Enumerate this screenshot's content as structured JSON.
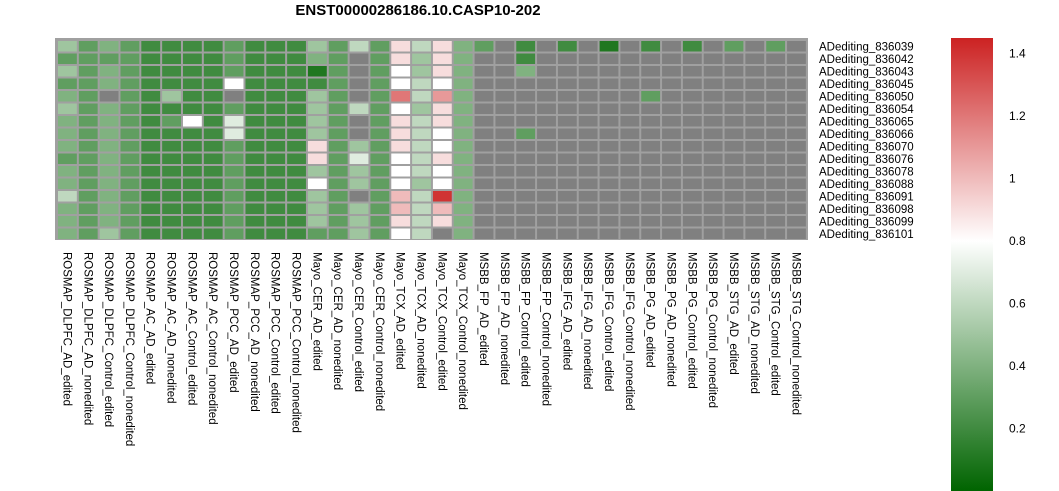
{
  "chart_data": {
    "type": "heatmap",
    "title": "ENST00000286186.10.CASP10-202",
    "rows": [
      "ADediting_836039",
      "ADediting_836042",
      "ADediting_836043",
      "ADediting_836045",
      "ADediting_836050",
      "ADediting_836054",
      "ADediting_836065",
      "ADediting_836066",
      "ADediting_836070",
      "ADediting_836076",
      "ADediting_836078",
      "ADediting_836088",
      "ADediting_836091",
      "ADediting_836098",
      "ADediting_836099",
      "ADediting_836101"
    ],
    "columns": [
      "ROSMAP_DLPFC_AD_edited",
      "ROSMAP_DLPFC_AD_nonedited",
      "ROSMAP_DLPFC_Control_edited",
      "ROSMAP_DLPFC_Control_nonedited",
      "ROSMAP_AC_AD_edited",
      "ROSMAP_AC_AD_nonedited",
      "ROSMAP_AC_Control_edited",
      "ROSMAP_AC_Control_nonedited",
      "ROSMAP_PCC_AD_edited",
      "ROSMAP_PCC_AD_nonedited",
      "ROSMAP_PCC_Control_edited",
      "ROSMAP_PCC_Control_nonedited",
      "Mayo_CER_AD_edited",
      "Mayo_CER_AD_nonedited",
      "Mayo_CER_Control_edited",
      "Mayo_CER_Control_nonedited",
      "Mayo_TCX_AD_edited",
      "Mayo_TCX_AD_nonedited",
      "Mayo_TCX_Control_edited",
      "Mayo_TCX_Control_nonedited",
      "MSBB_FP_AD_edited",
      "MSBB_FP_AD_nonedited",
      "MSBB_FP_Control_edited",
      "MSBB_FP_Control_nonedited",
      "MSBB_IFG_AD_edited",
      "MSBB_IFG_AD_nonedited",
      "MSBB_IFG_Control_edited",
      "MSBB_IFG_Control_nonedited",
      "MSBB_PG_AD_edited",
      "MSBB_PG_AD_nonedited",
      "MSBB_PG_Control_edited",
      "MSBB_PG_Control_nonedited",
      "MSBB_STG_AD_edited",
      "MSBB_STG_AD_nonedited",
      "MSBB_STG_Control_edited",
      "MSBB_STG_Control_nonedited"
    ],
    "values": [
      [
        0.5,
        0.3,
        0.4,
        0.3,
        0.2,
        0.2,
        0.2,
        0.2,
        0.3,
        0.2,
        0.2,
        0.2,
        0.5,
        0.3,
        0.6,
        0.3,
        0.9,
        0.6,
        0.9,
        0.4,
        0.3,
        null,
        0.2,
        null,
        0.2,
        null,
        0.1,
        null,
        0.2,
        null,
        0.2,
        null,
        0.3,
        null,
        0.3,
        null
      ],
      [
        0.3,
        0.3,
        0.3,
        0.3,
        0.2,
        0.2,
        0.2,
        0.2,
        0.3,
        0.2,
        0.2,
        0.2,
        0.4,
        0.3,
        null,
        0.3,
        0.9,
        0.5,
        0.9,
        0.4,
        null,
        null,
        0.2,
        null,
        null,
        null,
        null,
        null,
        null,
        null,
        null,
        null,
        null,
        null,
        null,
        null
      ],
      [
        0.5,
        0.3,
        0.4,
        0.3,
        0.2,
        0.2,
        0.2,
        0.2,
        0.3,
        0.2,
        0.2,
        0.2,
        0.1,
        0.3,
        null,
        0.3,
        0.8,
        0.5,
        0.9,
        0.4,
        null,
        null,
        0.4,
        null,
        null,
        null,
        null,
        null,
        null,
        null,
        null,
        null,
        null,
        null,
        null,
        null
      ],
      [
        0.3,
        0.3,
        0.4,
        0.3,
        0.2,
        0.2,
        0.2,
        0.2,
        0.8,
        0.2,
        0.2,
        0.2,
        0.2,
        0.3,
        null,
        0.3,
        0.8,
        0.6,
        0.8,
        0.4,
        null,
        null,
        null,
        null,
        null,
        null,
        null,
        null,
        null,
        null,
        null,
        null,
        null,
        null,
        null,
        null
      ],
      [
        0.4,
        0.3,
        null,
        0.3,
        0.2,
        0.5,
        0.2,
        0.2,
        null,
        0.2,
        0.2,
        0.2,
        0.5,
        0.3,
        null,
        0.3,
        1.2,
        0.6,
        1.1,
        0.4,
        null,
        null,
        null,
        null,
        null,
        null,
        null,
        null,
        0.3,
        null,
        null,
        null,
        null,
        null,
        null,
        null
      ],
      [
        0.5,
        0.3,
        0.4,
        0.3,
        0.2,
        0.2,
        0.2,
        0.2,
        0.3,
        0.2,
        0.2,
        0.2,
        0.5,
        0.3,
        0.6,
        0.3,
        0.8,
        0.5,
        0.9,
        0.4,
        null,
        null,
        null,
        null,
        null,
        null,
        null,
        null,
        null,
        null,
        null,
        null,
        null,
        null,
        null,
        null
      ],
      [
        0.4,
        0.3,
        0.4,
        0.3,
        0.2,
        0.3,
        0.8,
        0.2,
        0.7,
        0.2,
        0.2,
        0.2,
        0.5,
        0.3,
        null,
        0.3,
        0.9,
        0.6,
        0.9,
        0.4,
        null,
        null,
        null,
        null,
        null,
        null,
        null,
        null,
        null,
        null,
        null,
        null,
        null,
        null,
        null,
        null
      ],
      [
        0.4,
        0.3,
        0.4,
        0.3,
        0.2,
        0.2,
        0.2,
        0.2,
        0.7,
        0.2,
        0.2,
        0.2,
        0.5,
        0.3,
        null,
        0.3,
        0.9,
        0.6,
        0.8,
        0.4,
        null,
        null,
        0.3,
        null,
        null,
        null,
        null,
        null,
        null,
        null,
        null,
        null,
        null,
        null,
        null,
        null
      ],
      [
        0.4,
        0.3,
        0.4,
        0.3,
        0.2,
        0.2,
        0.2,
        0.2,
        0.3,
        0.2,
        0.2,
        0.2,
        0.9,
        0.3,
        0.5,
        0.3,
        0.9,
        0.6,
        0.8,
        0.4,
        null,
        null,
        null,
        null,
        null,
        null,
        null,
        null,
        null,
        null,
        null,
        null,
        null,
        null,
        null,
        null
      ],
      [
        0.3,
        0.3,
        0.4,
        0.3,
        0.2,
        0.2,
        0.2,
        0.2,
        0.3,
        0.2,
        0.2,
        0.2,
        0.9,
        0.3,
        0.7,
        0.3,
        0.8,
        0.6,
        0.9,
        0.4,
        null,
        null,
        null,
        null,
        null,
        null,
        null,
        null,
        null,
        null,
        null,
        null,
        null,
        null,
        null,
        null
      ],
      [
        0.4,
        0.3,
        0.4,
        0.3,
        0.2,
        0.2,
        0.2,
        0.2,
        0.3,
        0.2,
        0.2,
        0.2,
        0.5,
        0.3,
        0.5,
        0.3,
        0.8,
        0.6,
        0.8,
        0.4,
        null,
        null,
        null,
        null,
        null,
        null,
        null,
        null,
        null,
        null,
        null,
        null,
        null,
        null,
        null,
        null
      ],
      [
        0.4,
        0.3,
        0.4,
        0.3,
        0.2,
        0.2,
        0.2,
        0.2,
        0.3,
        0.2,
        0.2,
        0.2,
        0.8,
        0.3,
        0.5,
        0.3,
        0.8,
        0.5,
        0.8,
        0.4,
        null,
        null,
        null,
        null,
        null,
        null,
        null,
        null,
        null,
        null,
        null,
        null,
        null,
        null,
        null,
        null
      ],
      [
        0.6,
        0.3,
        0.4,
        0.3,
        0.2,
        0.2,
        0.2,
        0.2,
        0.3,
        0.2,
        0.2,
        0.2,
        0.5,
        0.3,
        null,
        0.3,
        1.0,
        0.6,
        1.4,
        0.4,
        null,
        null,
        null,
        null,
        null,
        null,
        null,
        null,
        null,
        null,
        null,
        null,
        null,
        null,
        null,
        null
      ],
      [
        0.4,
        0.3,
        0.4,
        0.3,
        0.2,
        0.2,
        0.2,
        0.2,
        0.3,
        0.2,
        0.2,
        0.2,
        0.5,
        0.3,
        0.5,
        0.3,
        1.0,
        0.6,
        1.0,
        0.4,
        null,
        null,
        null,
        null,
        null,
        null,
        null,
        null,
        null,
        null,
        null,
        null,
        null,
        null,
        null,
        null
      ],
      [
        0.4,
        0.3,
        0.4,
        0.3,
        0.2,
        0.2,
        0.2,
        0.2,
        0.3,
        0.2,
        0.2,
        0.2,
        0.5,
        0.3,
        0.5,
        0.3,
        0.9,
        0.6,
        0.9,
        0.4,
        null,
        null,
        null,
        null,
        null,
        null,
        null,
        null,
        null,
        null,
        null,
        null,
        null,
        null,
        null,
        null
      ],
      [
        0.4,
        0.3,
        0.5,
        0.3,
        0.2,
        0.2,
        0.2,
        0.2,
        0.3,
        0.2,
        0.2,
        0.2,
        0.3,
        0.3,
        0.5,
        0.3,
        0.8,
        0.6,
        null,
        0.4,
        null,
        null,
        null,
        null,
        null,
        null,
        null,
        null,
        null,
        null,
        null,
        null,
        null,
        null,
        null,
        null
      ]
    ],
    "na_color": "#808080",
    "color_scale": {
      "low": "#006400",
      "mid": "#FFFFFF",
      "high": "#CC2222",
      "min": 0.0,
      "mid_value": 0.8,
      "max": 1.45
    },
    "legend_ticks": [
      1.4,
      1.2,
      1,
      0.8,
      0.6,
      0.4,
      0.2
    ]
  }
}
